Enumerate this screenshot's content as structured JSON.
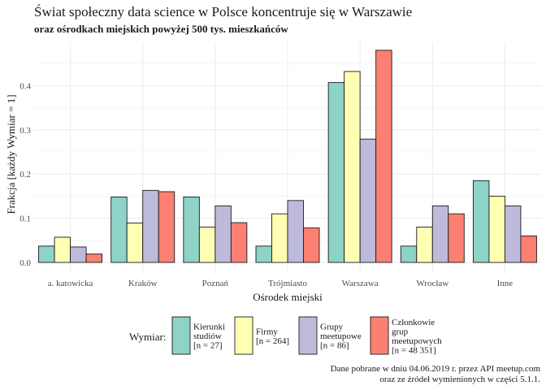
{
  "title": "Świat społeczny data science w Polsce koncentruje się w Warszawie",
  "subtitle": "oraz ośrodkach miejskich powyżej 500 tys. mieszkańców",
  "caption": [
    "Dane pobrane w dniu 04.06.2019 r. przez API meetup.com",
    "oraz ze źródeł wymienionych w części 5.1.1."
  ],
  "chart_data": {
    "type": "bar",
    "xlabel": "Ośrodek miejski",
    "ylabel": "Frakcja [każdy Wymiar = 1]",
    "ylim": [
      0,
      0.5
    ],
    "yticks": [
      "0.0",
      "0.1",
      "0.2",
      "0.3",
      "0.4"
    ],
    "grid": true,
    "legend_position": "bottom",
    "legend_title": "Wymiar:",
    "categories": [
      "a. katowicka",
      "Kraków",
      "Poznań",
      "Trójmiasto",
      "Warszawa",
      "Wrocław",
      "Inne"
    ],
    "series": [
      {
        "name": [
          "Kierunki",
          "studiów",
          "[n = 27]"
        ],
        "color": "#8dd3c7",
        "values": [
          0.037,
          0.148,
          0.148,
          0.037,
          0.407,
          0.037,
          0.185
        ]
      },
      {
        "name": [
          "Firmy",
          "[n = 264]"
        ],
        "color": "#ffffb3",
        "values": [
          0.057,
          0.089,
          0.08,
          0.11,
          0.432,
          0.08,
          0.15
        ]
      },
      {
        "name": [
          "Grupy",
          "meetupowe",
          "[n = 86]"
        ],
        "color": "#bebada",
        "values": [
          0.035,
          0.163,
          0.128,
          0.14,
          0.279,
          0.128,
          0.128
        ]
      },
      {
        "name": [
          "Członkowie",
          "grup",
          "meetupowych",
          "[n = 48 351]"
        ],
        "color": "#fb8072",
        "values": [
          0.019,
          0.16,
          0.09,
          0.078,
          0.48,
          0.11,
          0.06
        ]
      }
    ]
  }
}
